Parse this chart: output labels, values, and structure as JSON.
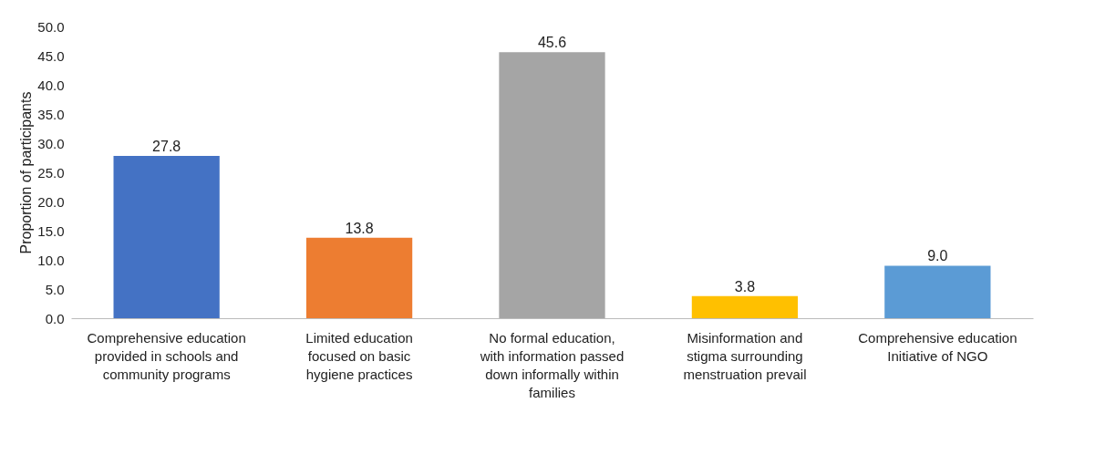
{
  "chart_data": {
    "type": "bar",
    "ylabel": "Proportion of participants",
    "categories": [
      "Comprehensive education provided in schools and community programs",
      "Limited education focused on basic hygiene practices",
      "No formal education, with information passed down informally within families",
      "Misinformation and stigma surrounding menstruation prevail",
      "Comprehensive education Initiative of NGO"
    ],
    "values": [
      27.8,
      13.8,
      45.6,
      3.8,
      9.0
    ],
    "value_labels": [
      "27.8",
      "13.8",
      "45.6",
      "3.8",
      "9.0"
    ],
    "colors": [
      "#4472c4",
      "#ed7d31",
      "#a5a5a5",
      "#ffc000",
      "#5b9bd5"
    ],
    "ylim": [
      0,
      50
    ],
    "yticks": [
      {
        "value": 0,
        "label": "0.0"
      },
      {
        "value": 5,
        "label": "5.0"
      },
      {
        "value": 10,
        "label": "10.0"
      },
      {
        "value": 15,
        "label": "15.0"
      },
      {
        "value": 20,
        "label": "20.0"
      },
      {
        "value": 25,
        "label": "25.0"
      },
      {
        "value": 30,
        "label": "30.0"
      },
      {
        "value": 35,
        "label": "35.0"
      },
      {
        "value": 40,
        "label": "40.0"
      },
      {
        "value": 45,
        "label": "45.0"
      },
      {
        "value": 50,
        "label": "50.0"
      }
    ],
    "grid": false
  }
}
